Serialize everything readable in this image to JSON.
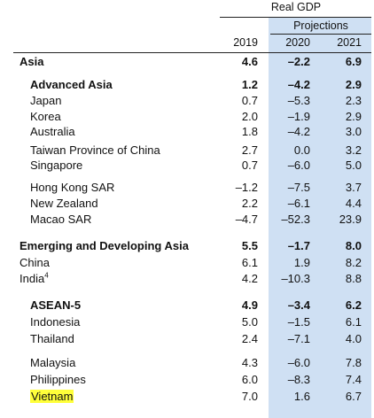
{
  "header": {
    "group_title": "Real GDP",
    "projections_label": "Projections",
    "col_2019": "2019",
    "col_2020": "2020",
    "col_2021": "2021"
  },
  "colors": {
    "projection_band": "#cfe0f3",
    "highlight": "#ffff3a"
  },
  "rows": [
    {
      "label": "Asia",
      "v2019": "4.6",
      "v2020": "–2.2",
      "v2021": "6.9",
      "bold": true
    },
    {
      "label": "Advanced Asia",
      "v2019": "1.2",
      "v2020": "–4.2",
      "v2021": "2.9",
      "bold": true
    },
    {
      "label": "Japan",
      "v2019": "0.7",
      "v2020": "–5.3",
      "v2021": "2.3"
    },
    {
      "label": "Korea",
      "v2019": "2.0",
      "v2020": "–1.9",
      "v2021": "2.9"
    },
    {
      "label": "Australia",
      "v2019": "1.8",
      "v2020": "–4.2",
      "v2021": "3.0"
    },
    {
      "label": "Taiwan Province of China",
      "v2019": "2.7",
      "v2020": "0.0",
      "v2021": "3.2"
    },
    {
      "label": "Singapore",
      "v2019": "0.7",
      "v2020": "–6.0",
      "v2021": "5.0"
    },
    {
      "label": "Hong Kong SAR",
      "v2019": "–1.2",
      "v2020": "–7.5",
      "v2021": "3.7"
    },
    {
      "label": "New Zealand",
      "v2019": "2.2",
      "v2020": "–6.1",
      "v2021": "4.4"
    },
    {
      "label": "Macao SAR",
      "v2019": "–4.7",
      "v2020": "–52.3",
      "v2021": "23.9"
    },
    {
      "label": "Emerging and Developing Asia",
      "v2019": "5.5",
      "v2020": "–1.7",
      "v2021": "8.0",
      "bold": true
    },
    {
      "label": "China",
      "v2019": "6.1",
      "v2020": "1.9",
      "v2021": "8.2"
    },
    {
      "label": "India",
      "footnote": "4",
      "v2019": "4.2",
      "v2020": "–10.3",
      "v2021": "8.8"
    },
    {
      "label": "ASEAN-5",
      "v2019": "4.9",
      "v2020": "–3.4",
      "v2021": "6.2",
      "bold": true
    },
    {
      "label": "Indonesia",
      "v2019": "5.0",
      "v2020": "–1.5",
      "v2021": "6.1"
    },
    {
      "label": "Thailand",
      "v2019": "2.4",
      "v2020": "–7.1",
      "v2021": "4.0"
    },
    {
      "label": "Malaysia",
      "v2019": "4.3",
      "v2020": "–6.0",
      "v2021": "7.8"
    },
    {
      "label": "Philippines",
      "v2019": "6.0",
      "v2020": "–8.3",
      "v2021": "7.4"
    },
    {
      "label": "Vietnam",
      "v2019": "7.0",
      "v2020": "1.6",
      "v2021": "6.7",
      "highlighted": true
    }
  ]
}
